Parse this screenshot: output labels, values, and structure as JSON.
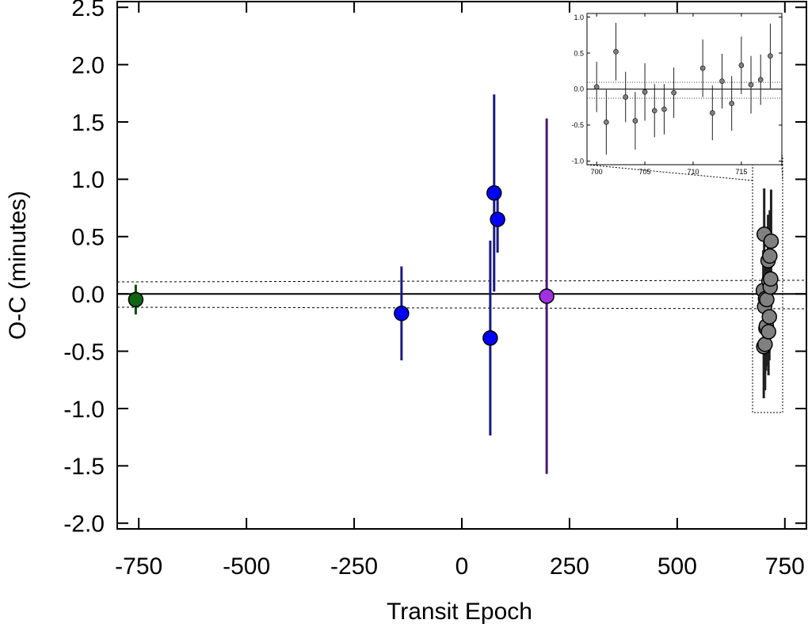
{
  "chart_data": [
    {
      "type": "errorbar-scatter",
      "xlabel": "Transit Epoch",
      "ylabel": "O-C (minutes)",
      "xlim": [
        -800,
        800
      ],
      "ylim": [
        -2.05,
        2.55
      ],
      "xticks": [
        -750,
        -500,
        -250,
        0,
        250,
        500,
        750
      ],
      "yticks": [
        {
          "value": -2,
          "label": "-2.0"
        },
        -1.5,
        {
          "value": -1,
          "label": "-1.0"
        },
        -0.5,
        {
          "value": 0,
          "label": "0.0"
        },
        0.5,
        {
          "value": 1,
          "label": "1.0"
        },
        1.5,
        {
          "value": 2,
          "label": "2.0"
        },
        2.5
      ],
      "series": [
        {
          "color": "#116611",
          "error_color": "#0d4a0d",
          "x": [
            -757
          ],
          "values": [
            -0.05
          ],
          "errors": [
            0.13
          ]
        },
        {
          "color": "#0000ff",
          "error_color": "#1a1a80",
          "x": [
            -140,
            66,
            75,
            83
          ],
          "values": [
            -0.17,
            -0.385,
            0.88,
            0.65
          ],
          "errors": [
            0.41,
            0.85,
            0.86,
            0.29
          ]
        },
        {
          "color": "#a030e0",
          "error_color": "#4a1a6a",
          "x": [
            197
          ],
          "values": [
            -0.02
          ],
          "errors": [
            1.55
          ]
        },
        {
          "color": "#808080",
          "error_color": "#202020",
          "x": [
            700,
            701,
            702,
            703,
            704,
            705,
            706,
            707,
            708,
            711,
            712,
            713,
            714,
            715,
            716,
            717,
            718
          ],
          "values": [
            0.03,
            -0.46,
            0.52,
            -0.11,
            -0.44,
            -0.04,
            -0.3,
            -0.28,
            -0.05,
            0.29,
            -0.33,
            0.11,
            -0.2,
            0.33,
            0.06,
            0.13,
            0.46
          ],
          "errors": [
            0.35,
            0.45,
            0.4,
            0.35,
            0.4,
            0.4,
            0.37,
            0.35,
            0.35,
            0.4,
            0.38,
            0.38,
            0.38,
            0.4,
            0.4,
            0.35,
            0.45
          ]
        }
      ]
    },
    {
      "type": "errorbar-scatter",
      "xlim": [
        699,
        719.2
      ],
      "ylim": [
        -1.05,
        1.05
      ],
      "xticks": [
        700,
        705,
        710,
        715
      ],
      "yticks": [
        {
          "value": -1,
          "label": "-1.0"
        },
        -0.5,
        {
          "value": 0,
          "label": "0.0"
        },
        0.5,
        {
          "value": 1,
          "label": "1.0"
        }
      ],
      "series": [
        {
          "color": "#808080",
          "error_color": "#202020",
          "x": [
            700,
            701,
            702,
            703,
            704,
            705,
            706,
            707,
            708,
            711,
            712,
            713,
            714,
            715,
            716,
            717,
            718
          ],
          "values": [
            0.03,
            -0.46,
            0.52,
            -0.11,
            -0.44,
            -0.04,
            -0.3,
            -0.28,
            -0.05,
            0.29,
            -0.33,
            0.11,
            -0.2,
            0.33,
            0.06,
            0.13,
            0.46
          ],
          "errors": [
            0.35,
            0.45,
            0.4,
            0.35,
            0.4,
            0.4,
            0.37,
            0.35,
            0.35,
            0.4,
            0.38,
            0.38,
            0.38,
            0.4,
            0.4,
            0.35,
            0.45
          ]
        }
      ]
    }
  ]
}
